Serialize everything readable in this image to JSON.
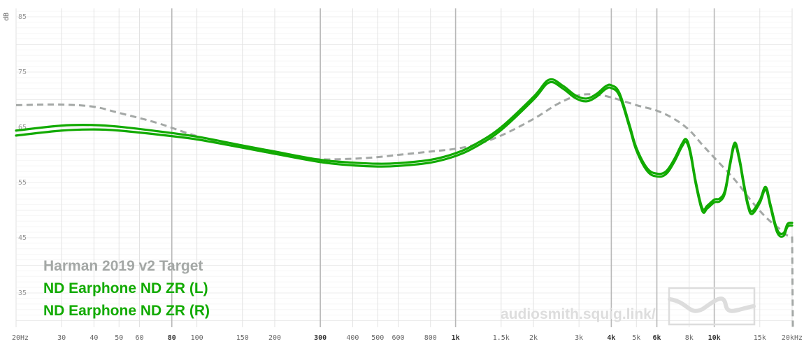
{
  "chart_data": {
    "type": "line",
    "title": "",
    "xlabel": "",
    "ylabel": "dB",
    "x_scale": "log",
    "xlim": [
      20,
      20000
    ],
    "ylim": [
      30,
      87
    ],
    "grid": true,
    "legend_position": "bottom-left",
    "x_ticks": [
      {
        "value": 20,
        "label": "20Hz",
        "strong": false
      },
      {
        "value": 30,
        "label": "30",
        "strong": false
      },
      {
        "value": 40,
        "label": "40",
        "strong": false
      },
      {
        "value": 50,
        "label": "50",
        "strong": false
      },
      {
        "value": 60,
        "label": "60",
        "strong": false
      },
      {
        "value": 80,
        "label": "80",
        "strong": true
      },
      {
        "value": 100,
        "label": "100",
        "strong": false
      },
      {
        "value": 150,
        "label": "150",
        "strong": false
      },
      {
        "value": 200,
        "label": "200",
        "strong": false
      },
      {
        "value": 300,
        "label": "300",
        "strong": true
      },
      {
        "value": 400,
        "label": "400",
        "strong": false
      },
      {
        "value": 500,
        "label": "500",
        "strong": false
      },
      {
        "value": 600,
        "label": "600",
        "strong": false
      },
      {
        "value": 800,
        "label": "800",
        "strong": false
      },
      {
        "value": 1000,
        "label": "1k",
        "strong": true
      },
      {
        "value": 1500,
        "label": "1.5k",
        "strong": false
      },
      {
        "value": 2000,
        "label": "2k",
        "strong": false
      },
      {
        "value": 3000,
        "label": "3k",
        "strong": false
      },
      {
        "value": 4000,
        "label": "4k",
        "strong": true
      },
      {
        "value": 5000,
        "label": "5k",
        "strong": false
      },
      {
        "value": 6000,
        "label": "6k",
        "strong": true
      },
      {
        "value": 8000,
        "label": "8k",
        "strong": false
      },
      {
        "value": 10000,
        "label": "10k",
        "strong": true
      },
      {
        "value": 15000,
        "label": "15k",
        "strong": false
      },
      {
        "value": 20000,
        "label": "20kHz",
        "strong": false
      }
    ],
    "y_ticks": [
      {
        "value": 85,
        "label": "85"
      },
      {
        "value": 75,
        "label": "75"
      },
      {
        "value": 65,
        "label": "65"
      },
      {
        "value": 55,
        "label": "55"
      },
      {
        "value": 45,
        "label": "45"
      },
      {
        "value": 35,
        "label": "35"
      }
    ],
    "series": [
      {
        "name": "Harman 2019 v2 Target",
        "color": "#a4a8a6",
        "dashed": true,
        "x": [
          20,
          30,
          40,
          50,
          70,
          100,
          150,
          200,
          250,
          300,
          400,
          500,
          600,
          800,
          1000,
          1200,
          1500,
          2000,
          2500,
          3000,
          3500,
          4000,
          5000,
          6000,
          7000,
          8000,
          9000,
          10000,
          12000,
          14000,
          16000,
          18000,
          19000,
          20000
        ],
        "y": [
          69,
          69.1,
          68.7,
          67.6,
          65.8,
          63.4,
          61.4,
          60.2,
          59.6,
          59.2,
          59.3,
          59.6,
          60,
          60.6,
          61.1,
          61.9,
          63.5,
          66.5,
          69.3,
          70.8,
          70.9,
          70.4,
          69,
          68,
          66.5,
          64.5,
          61.8,
          59.5,
          55.5,
          51.5,
          48.5,
          46.5,
          45.5,
          45.2
        ]
      },
      {
        "name": "ND Earphone ND ZR (L)",
        "color": "#11aa00",
        "dashed": false,
        "x": [
          20,
          30,
          40,
          50,
          70,
          100,
          150,
          200,
          300,
          400,
          500,
          600,
          800,
          1000,
          1200,
          1500,
          2000,
          2300,
          2600,
          2900,
          3200,
          3500,
          3800,
          4000,
          4300,
          4700,
          5000,
          5500,
          6000,
          6500,
          7000,
          7500,
          7800,
          8100,
          8500,
          9000,
          9400,
          10000,
          10500,
          11000,
          11500,
          12000,
          12500,
          13000,
          13500,
          14000,
          15000,
          15800,
          16500,
          17500,
          18500,
          19200,
          20000
        ],
        "y": [
          64.4,
          65.3,
          65.4,
          65.1,
          64.3,
          63.3,
          61.7,
          60.6,
          59.1,
          58.6,
          58.4,
          58.5,
          59.1,
          60.3,
          62,
          65,
          70.5,
          73.6,
          72.5,
          70.8,
          70.2,
          71,
          72.4,
          72.6,
          71.2,
          65.5,
          61.3,
          57.6,
          56.6,
          57,
          59.2,
          62,
          62.8,
          60.5,
          55,
          50.3,
          50.8,
          51.9,
          52.1,
          53.6,
          58.5,
          62.2,
          59.5,
          55,
          51.2,
          49.8,
          51.8,
          54.2,
          51,
          46.5,
          45.8,
          47.5,
          47.7
        ]
      },
      {
        "name": "ND Earphone ND ZR (R)",
        "color": "#11aa00",
        "dashed": false,
        "x": [
          20,
          30,
          40,
          50,
          70,
          100,
          150,
          200,
          300,
          400,
          500,
          600,
          800,
          1000,
          1200,
          1500,
          2000,
          2300,
          2600,
          2900,
          3200,
          3500,
          3800,
          4000,
          4300,
          4700,
          5000,
          5500,
          6000,
          6500,
          7000,
          7500,
          7800,
          8100,
          8500,
          9000,
          9400,
          10000,
          10500,
          11000,
          11500,
          12000,
          12500,
          13000,
          13500,
          14000,
          15000,
          15800,
          16500,
          17500,
          18500,
          19200,
          20000
        ],
        "y": [
          63.5,
          64.4,
          64.6,
          64.4,
          63.7,
          62.8,
          61.3,
          60.2,
          58.7,
          58.1,
          57.9,
          58,
          58.6,
          59.8,
          61.5,
          64.5,
          70,
          73.1,
          72,
          70.3,
          69.7,
          70.5,
          71.9,
          72.1,
          70.7,
          65,
          60.8,
          57.1,
          56.1,
          56.5,
          58.7,
          61.5,
          62.3,
          60,
          54.5,
          49.8,
          50.3,
          51.4,
          51.6,
          53.1,
          58,
          61.7,
          59,
          54.5,
          50.7,
          49.3,
          51.3,
          53.7,
          50.5,
          46,
          45.3,
          47,
          47.2
        ]
      }
    ]
  },
  "watermark": {
    "text": "audiosmith.squig.link/",
    "logo": "squiglink-logo"
  }
}
